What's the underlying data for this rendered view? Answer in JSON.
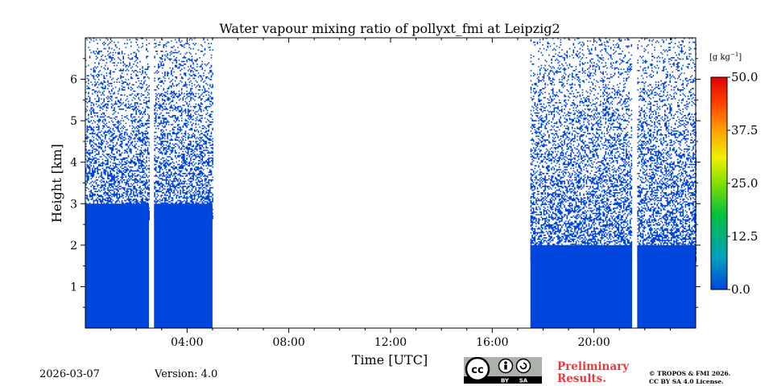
{
  "chart_data": {
    "type": "heatmap",
    "title": "Water vapour mixing ratio of pollyxt_fmi at Leipzig2",
    "xlabel": "Time [UTC]",
    "ylabel": "Height [km]",
    "xlim_hours": [
      0,
      24
    ],
    "ylim_km": [
      0,
      7
    ],
    "x_ticks": [
      {
        "hour": 4,
        "label": "04:00"
      },
      {
        "hour": 8,
        "label": "08:00"
      },
      {
        "hour": 12,
        "label": "12:00"
      },
      {
        "hour": 16,
        "label": "16:00"
      },
      {
        "hour": 20,
        "label": "20:00"
      }
    ],
    "y_ticks": [
      {
        "km": 1,
        "label": "1"
      },
      {
        "km": 2,
        "label": "2"
      },
      {
        "km": 3,
        "label": "3"
      },
      {
        "km": 4,
        "label": "4"
      },
      {
        "km": 5,
        "label": "5"
      },
      {
        "km": 6,
        "label": "6"
      }
    ],
    "data_segments_hours": [
      [
        0,
        2.5
      ],
      [
        2.7,
        5.0
      ],
      [
        17.5,
        21.5
      ],
      [
        21.7,
        24.0
      ]
    ],
    "dense_top_km": [
      {
        "start": 0,
        "end": 5,
        "km": 3.0
      },
      {
        "start": 17.5,
        "end": 24,
        "km": 2.0
      }
    ],
    "field_color": "#0046dc",
    "colorbar": {
      "unit_label": "[g kg",
      "unit_exponent": "−1",
      "unit_close": "]",
      "min": 0.0,
      "max": 50.0,
      "ticks": [
        "0.0",
        "12.5",
        "25.0",
        "37.5",
        "50.0"
      ],
      "tick_values": [
        0.0,
        12.5,
        25.0,
        37.5,
        50.0
      ],
      "colors": [
        "#0044dd",
        "#00a0c0",
        "#00c040",
        "#80e000",
        "#f0f000",
        "#ffa000",
        "#ff4000",
        "#e00000"
      ]
    }
  },
  "footer": {
    "date": "2026-03-07",
    "version": "Version: 4.0",
    "preliminary_line1": "Preliminary",
    "preliminary_line2": "Results.",
    "copyright_line1": "© TROPOS & FMI 2026.",
    "copyright_line2": "CC BY SA 4.0 License.",
    "license_by": "BY",
    "license_sa": "SA",
    "license_cc": "cc"
  }
}
